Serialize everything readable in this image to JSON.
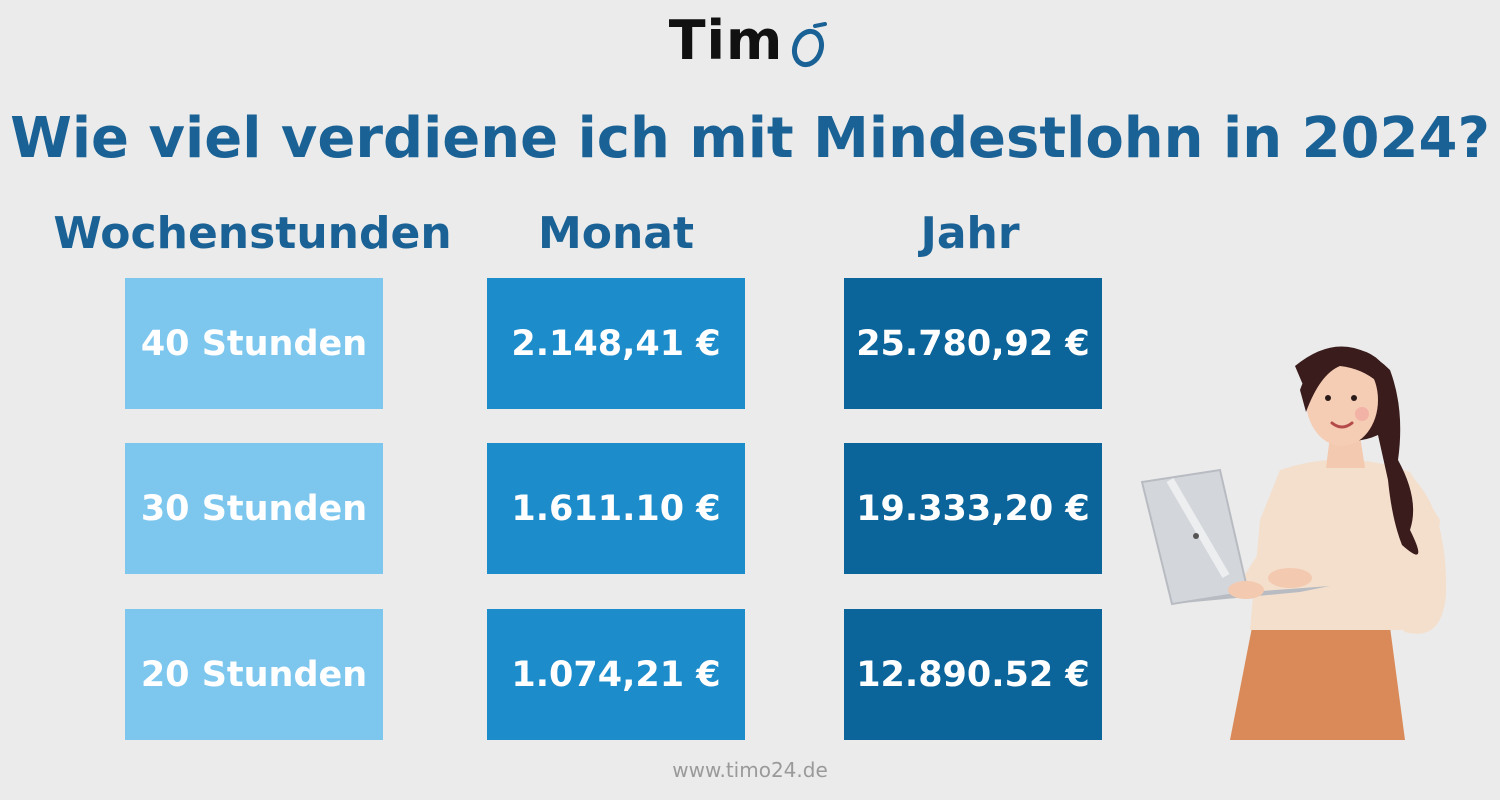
{
  "logo": {
    "text": "Tim",
    "mark": "O"
  },
  "title": "Wie viel verdiene ich mit Mindestlohn in 2024?",
  "headers": {
    "hours": "Wochenstunden",
    "month": "Monat",
    "year": "Jahr"
  },
  "rows": [
    {
      "hours": "40 Stunden",
      "month": "2.148,41 €",
      "year": "25.780,92 €"
    },
    {
      "hours": "30 Stunden",
      "month": "1.611.10 €",
      "year": "19.333,20 €"
    },
    {
      "hours": "20 Stunden",
      "month": "1.074,21 €",
      "year": "12.890.52 €"
    }
  ],
  "footer": "www.timo24.de",
  "illustration": {
    "icon": "woman-with-laptop-illustration"
  },
  "colors": {
    "background": "#ebebeb",
    "title": "#1a6295",
    "hours_cell": "#7dc7ef",
    "month_cell": "#1d8ccb",
    "year_cell": "#0b659b",
    "logo_accent": "#1a6295"
  }
}
